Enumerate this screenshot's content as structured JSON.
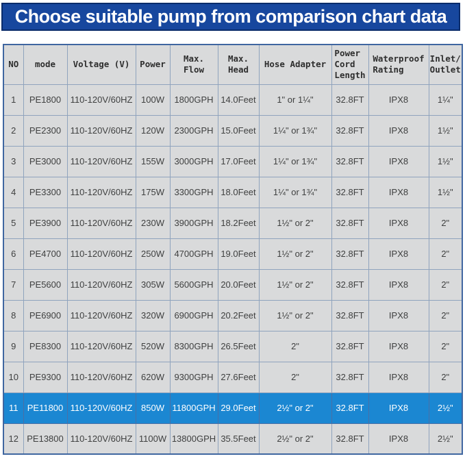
{
  "banner": {
    "title": "Choose suitable pump from comparison chart data",
    "bg_color": "#17479e",
    "border_color": "#0a2c6b",
    "text_color": "#ffffff"
  },
  "colors": {
    "cell_bg": "#d9dadb",
    "grid_border": "#8fa3bd",
    "outer_border": "#3f66a0",
    "highlight_row_bg": "#1b87d2",
    "highlight_row_text": "#ffffff",
    "body_text": "#3f4040"
  },
  "chart_data": {
    "type": "table",
    "title": "Choose suitable pump from comparison chart data",
    "highlighted_row_no": "11",
    "columns": [
      {
        "key": "no",
        "label": "NO"
      },
      {
        "key": "mode",
        "label": "mode"
      },
      {
        "key": "voltage",
        "label": "Voltage (V)"
      },
      {
        "key": "power",
        "label": "Power"
      },
      {
        "key": "max_flow",
        "label": "Max.\nFlow"
      },
      {
        "key": "max_head",
        "label": "Max.\nHead"
      },
      {
        "key": "hose_adapter",
        "label": "Hose Adapter"
      },
      {
        "key": "cord_length",
        "label": "Power\nCord\nLength"
      },
      {
        "key": "waterproof",
        "label": "Waterproof\nRating"
      },
      {
        "key": "inlet_outlet",
        "label": "Inlet/\nOutlet"
      }
    ],
    "rows": [
      {
        "no": "1",
        "mode": "PE1800",
        "voltage": "110-120V/60HZ",
        "power": "100W",
        "max_flow": "1800GPH",
        "max_head": "14.0Feet",
        "hose_adapter": "1\" or 1¼\"",
        "cord_length": "32.8FT",
        "waterproof": "IPX8",
        "inlet_outlet": "1¼\"",
        "highlight": false
      },
      {
        "no": "2",
        "mode": "PE2300",
        "voltage": "110-120V/60HZ",
        "power": "120W",
        "max_flow": "2300GPH",
        "max_head": "15.0Feet",
        "hose_adapter": "1¼\" or 1¾\"",
        "cord_length": "32.8FT",
        "waterproof": "IPX8",
        "inlet_outlet": "1½\"",
        "highlight": false
      },
      {
        "no": "3",
        "mode": "PE3000",
        "voltage": "110-120V/60HZ",
        "power": "155W",
        "max_flow": "3000GPH",
        "max_head": "17.0Feet",
        "hose_adapter": "1¼\" or 1¾\"",
        "cord_length": "32.8FT",
        "waterproof": "IPX8",
        "inlet_outlet": "1½\"",
        "highlight": false
      },
      {
        "no": "4",
        "mode": "PE3300",
        "voltage": "110-120V/60HZ",
        "power": "175W",
        "max_flow": "3300GPH",
        "max_head": "18.0Feet",
        "hose_adapter": "1¼\" or 1¾\"",
        "cord_length": "32.8FT",
        "waterproof": "IPX8",
        "inlet_outlet": "1½\"",
        "highlight": false
      },
      {
        "no": "5",
        "mode": "PE3900",
        "voltage": "110-120V/60HZ",
        "power": "230W",
        "max_flow": "3900GPH",
        "max_head": "18.2Feet",
        "hose_adapter": "1½\" or 2\"",
        "cord_length": "32.8FT",
        "waterproof": "IPX8",
        "inlet_outlet": "2\"",
        "highlight": false
      },
      {
        "no": "6",
        "mode": "PE4700",
        "voltage": "110-120V/60HZ",
        "power": "250W",
        "max_flow": "4700GPH",
        "max_head": "19.0Feet",
        "hose_adapter": "1½\" or 2\"",
        "cord_length": "32.8FT",
        "waterproof": "IPX8",
        "inlet_outlet": "2\"",
        "highlight": false
      },
      {
        "no": "7",
        "mode": "PE5600",
        "voltage": "110-120V/60HZ",
        "power": "305W",
        "max_flow": "5600GPH",
        "max_head": "20.0Feet",
        "hose_adapter": "1½\" or 2\"",
        "cord_length": "32.8FT",
        "waterproof": "IPX8",
        "inlet_outlet": "2\"",
        "highlight": false
      },
      {
        "no": "8",
        "mode": "PE6900",
        "voltage": "110-120V/60HZ",
        "power": "320W",
        "max_flow": "6900GPH",
        "max_head": "20.2Feet",
        "hose_adapter": "1½\" or 2\"",
        "cord_length": "32.8FT",
        "waterproof": "IPX8",
        "inlet_outlet": "2\"",
        "highlight": false
      },
      {
        "no": "9",
        "mode": "PE8300",
        "voltage": "110-120V/60HZ",
        "power": "520W",
        "max_flow": "8300GPH",
        "max_head": "26.5Feet",
        "hose_adapter": "2\"",
        "cord_length": "32.8FT",
        "waterproof": "IPX8",
        "inlet_outlet": "2\"",
        "highlight": false
      },
      {
        "no": "10",
        "mode": "PE9300",
        "voltage": "110-120V/60HZ",
        "power": "620W",
        "max_flow": "9300GPH",
        "max_head": "27.6Feet",
        "hose_adapter": "2\"",
        "cord_length": "32.8FT",
        "waterproof": "IPX8",
        "inlet_outlet": "2\"",
        "highlight": false
      },
      {
        "no": "11",
        "mode": "PE11800",
        "voltage": "110-120V/60HZ",
        "power": "850W",
        "max_flow": "11800GPH",
        "max_head": "29.0Feet",
        "hose_adapter": "2½\" or 2\"",
        "cord_length": "32.8FT",
        "waterproof": "IPX8",
        "inlet_outlet": "2½\"",
        "highlight": true
      },
      {
        "no": "12",
        "mode": "PE13800",
        "voltage": "110-120V/60HZ",
        "power": "1100W",
        "max_flow": "13800GPH",
        "max_head": "35.5Feet",
        "hose_adapter": "2½\" or 2\"",
        "cord_length": "32.8FT",
        "waterproof": "IPX8",
        "inlet_outlet": "2½\"",
        "highlight": false
      }
    ]
  }
}
